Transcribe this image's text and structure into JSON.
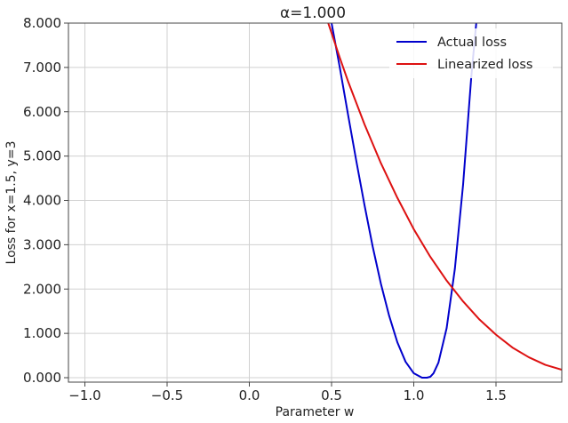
{
  "chart_data": {
    "type": "line",
    "title": "α=1.000",
    "xlabel": "Parameter w",
    "ylabel": "Loss for x=1.5, y=3",
    "xlim": [
      -1.1,
      1.9
    ],
    "ylim": [
      -0.1,
      8.0
    ],
    "grid": true,
    "legend_position": "top-right",
    "x_ticks": [
      -1.0,
      -0.5,
      0.0,
      0.5,
      1.0,
      1.5
    ],
    "x_tick_labels": [
      "−1.0",
      "−0.5",
      "0.0",
      "0.5",
      "1.0",
      "1.5"
    ],
    "y_ticks": [
      0,
      1,
      2,
      3,
      4,
      5,
      6,
      7,
      8
    ],
    "y_tick_labels": [
      "0.000",
      "1.000",
      "2.000",
      "3.000",
      "4.000",
      "5.000",
      "6.000",
      "7.000",
      "8.000"
    ],
    "series": [
      {
        "name": "Actual loss",
        "color": "#0000cc",
        "x": [
          0.5,
          0.55,
          0.6,
          0.65,
          0.7,
          0.75,
          0.8,
          0.85,
          0.9,
          0.95,
          1.0,
          1.05,
          1.08,
          1.1,
          1.12,
          1.15,
          1.2,
          1.25,
          1.3,
          1.35,
          1.38
        ],
        "y": [
          8.0,
          7.0,
          5.94,
          4.9,
          3.9,
          2.96,
          2.12,
          1.4,
          0.8,
          0.36,
          0.1,
          0.0,
          0.0,
          0.02,
          0.1,
          0.34,
          1.12,
          2.46,
          4.36,
          6.8,
          8.0
        ]
      },
      {
        "name": "Linearized loss",
        "color": "#dd1111",
        "x": [
          0.48,
          0.55,
          0.6,
          0.7,
          0.8,
          0.9,
          1.0,
          1.1,
          1.2,
          1.3,
          1.4,
          1.5,
          1.6,
          1.7,
          1.8,
          1.9
        ],
        "y": [
          8.0,
          7.22,
          6.69,
          5.72,
          4.84,
          4.06,
          3.35,
          2.73,
          2.19,
          1.72,
          1.31,
          0.97,
          0.68,
          0.46,
          0.29,
          0.18
        ]
      }
    ]
  }
}
